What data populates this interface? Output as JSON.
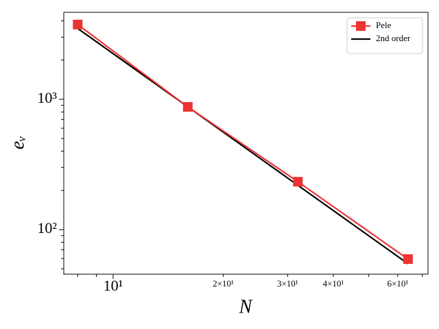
{
  "chart_data": {
    "type": "line",
    "xlabel": "N",
    "ylabel": "eᵥ",
    "x": [
      8,
      16,
      32,
      64
    ],
    "series": [
      {
        "name": "Pele",
        "color": "#ee3333",
        "marker": "square",
        "values": [
          3750,
          875,
          233,
          59.4
        ]
      },
      {
        "name": "2nd order",
        "color": "#000000",
        "marker": "none",
        "values": [
          3500,
          875,
          218.75,
          54.6875
        ]
      }
    ],
    "xscale": "log",
    "yscale": "log",
    "xlim": [
      7.33,
      72.6
    ],
    "ylim": [
      45.5,
      4650
    ],
    "xticks": [
      {
        "value": 10,
        "label": "10¹"
      },
      {
        "value": 20,
        "label": "2×10¹"
      },
      {
        "value": 30,
        "label": "3×10¹"
      },
      {
        "value": 40,
        "label": "4×10¹"
      },
      {
        "value": 60,
        "label": "6×10¹"
      }
    ],
    "xminorticks": [
      8,
      9,
      50,
      70
    ],
    "yticks": [
      {
        "value": 100,
        "label": "10²"
      },
      {
        "value": 1000,
        "label": "10³"
      }
    ],
    "yminorticks": [
      50,
      60,
      70,
      80,
      90,
      200,
      300,
      400,
      500,
      600,
      700,
      800,
      900,
      2000,
      3000,
      4000
    ],
    "grid": false,
    "legend": "upper right"
  }
}
